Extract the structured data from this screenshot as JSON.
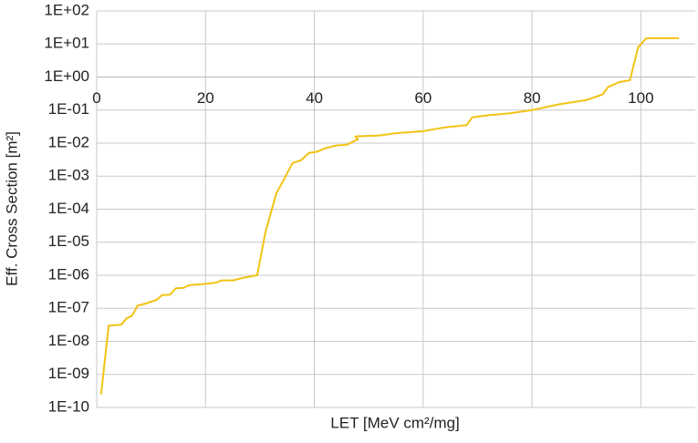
{
  "chart_data": {
    "type": "line",
    "x_label": "LET [MeV cm²/mg]",
    "y_label": "Eff. Cross Section [m²]",
    "log_y": true,
    "grid": true,
    "x_axis_crosses": 1,
    "xlim": [
      0,
      110
    ],
    "xticks": [
      0,
      20,
      40,
      60,
      80,
      100
    ],
    "ylim": [
      1e-10,
      100
    ],
    "yticks": [
      {
        "value": 1e-10,
        "label": "1E-10"
      },
      {
        "value": 1e-09,
        "label": "1E-09"
      },
      {
        "value": 1e-08,
        "label": "1E-08"
      },
      {
        "value": 1e-07,
        "label": "1E-07"
      },
      {
        "value": 1e-06,
        "label": "1E-06"
      },
      {
        "value": 1e-05,
        "label": "1E-05"
      },
      {
        "value": 0.0001,
        "label": "1E-04"
      },
      {
        "value": 0.001,
        "label": "1E-03"
      },
      {
        "value": 0.01,
        "label": "1E-02"
      },
      {
        "value": 0.1,
        "label": "1E-01"
      },
      {
        "value": 1,
        "label": "1E+00"
      },
      {
        "value": 10,
        "label": "1E+01"
      },
      {
        "value": 100,
        "label": "1E+02"
      }
    ],
    "x": [
      0.8,
      2.2,
      4.5,
      5.5,
      6.5,
      7.5,
      9,
      11,
      12,
      13.5,
      14.5,
      16,
      17,
      20,
      22,
      23,
      25,
      27,
      29.5,
      31,
      33,
      34,
      36,
      37.5,
      39,
      40.5,
      42,
      44,
      46,
      47.5,
      48,
      47.5,
      52,
      55,
      60,
      64,
      68,
      69,
      72,
      76,
      80,
      85,
      90,
      93,
      94,
      96,
      98,
      99.5,
      101,
      107
    ],
    "series": [
      {
        "color": "#f2c314",
        "values": [
          2.5e-10,
          3e-08,
          3.2e-08,
          5e-08,
          6e-08,
          1.2e-07,
          1.4e-07,
          1.8e-07,
          2.5e-07,
          2.6e-07,
          4e-07,
          4.2e-07,
          5e-07,
          5.5e-07,
          6e-07,
          7e-07,
          7e-07,
          8.5e-07,
          1e-06,
          2e-05,
          0.0003,
          0.0006,
          0.0025,
          0.003,
          0.005,
          0.0055,
          0.007,
          0.0085,
          0.009,
          0.012,
          0.013,
          0.016,
          0.017,
          0.02,
          0.023,
          0.03,
          0.035,
          0.06,
          0.07,
          0.08,
          0.1,
          0.15,
          0.2,
          0.3,
          0.5,
          0.7,
          0.8,
          8,
          15,
          15
        ]
      }
    ]
  }
}
